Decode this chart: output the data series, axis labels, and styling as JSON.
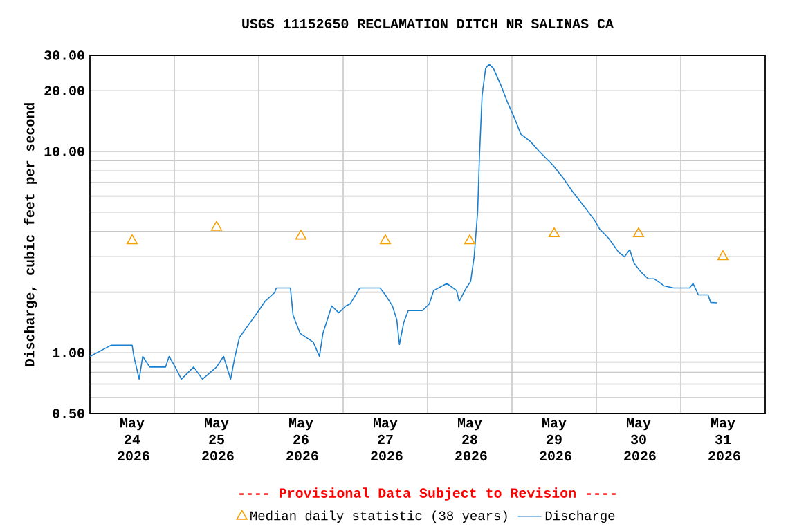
{
  "chart_data": {
    "type": "line",
    "title": "USGS 11152650 RECLAMATION DITCH NR SALINAS CA",
    "ylabel": "Discharge, cubic feet per second",
    "log": "y",
    "grid": true,
    "legend": "bottom",
    "annotations": [
      "---- Provisional Data Subject to Revision ----"
    ],
    "xlim": [
      "2026-05-24T00:00",
      "2026-06-01T00:00"
    ],
    "xticks": [
      {
        "value": "2026-05-25T00:00",
        "label": null
      },
      {
        "value": "2026-05-26T00:00",
        "label": null
      },
      {
        "value": "2026-05-27T00:00",
        "label": null
      },
      {
        "value": "2026-05-28T00:00",
        "label": null
      },
      {
        "value": "2026-05-29T00:00",
        "label": null
      },
      {
        "value": "2026-05-30T00:00",
        "label": null
      },
      {
        "value": "2026-05-31T00:00",
        "label": null
      },
      {
        "value": "2026-05-24T12:00",
        "label": "May 24 2026"
      },
      {
        "value": "2026-05-25T12:00",
        "label": "May 25 2026"
      },
      {
        "value": "2026-05-26T12:00",
        "label": "May 26 2026"
      },
      {
        "value": "2026-05-27T12:00",
        "label": "May 27 2026"
      },
      {
        "value": "2026-05-28T12:00",
        "label": "May 28 2026"
      },
      {
        "value": "2026-05-29T12:00",
        "label": "May 29 2026"
      },
      {
        "value": "2026-05-30T12:00",
        "label": "May 30 2026"
      },
      {
        "value": "2026-05-31T12:00",
        "label": "May 31 2026"
      }
    ],
    "ylim": [
      0.5,
      30
    ],
    "yticks": [
      {
        "value": 0.5,
        "label": "0.50"
      },
      {
        "value": 0.6,
        "label": null
      },
      {
        "value": 0.7,
        "label": null
      },
      {
        "value": 0.8,
        "label": null
      },
      {
        "value": 0.9,
        "label": null
      },
      {
        "value": 1,
        "label": "1.00"
      },
      {
        "value": 2,
        "label": null
      },
      {
        "value": 3,
        "label": null
      },
      {
        "value": 4,
        "label": null
      },
      {
        "value": 5,
        "label": null
      },
      {
        "value": 6,
        "label": null
      },
      {
        "value": 7,
        "label": null
      },
      {
        "value": 8,
        "label": null
      },
      {
        "value": 9,
        "label": null
      },
      {
        "value": 10,
        "label": "10.00"
      },
      {
        "value": 20,
        "label": "20.00"
      },
      {
        "value": 30,
        "label": "30.00"
      }
    ],
    "series": [
      {
        "name": "Median daily statistic (38 years)",
        "type": "scatter",
        "marker": "triangle",
        "color": "#f5a000",
        "x": [
          "2026-05-24T12:00",
          "2026-05-25T12:00",
          "2026-05-26T12:00",
          "2026-05-27T12:00",
          "2026-05-28T12:00",
          "2026-05-29T12:00",
          "2026-05-30T12:00",
          "2026-05-31T12:00"
        ],
        "values": [
          3.6,
          4.2,
          3.8,
          3.6,
          3.6,
          3.9,
          3.9,
          3.0
        ]
      },
      {
        "name": "Discharge",
        "color": "#1a7fcf",
        "x": [
          "2026-05-24T00:00",
          "2026-05-24T06:00",
          "2026-05-24T10:00",
          "2026-05-24T12:00",
          "2026-05-24T12:30",
          "2026-05-24T14:00",
          "2026-05-24T15:00",
          "2026-05-24T17:00",
          "2026-05-24T21:30",
          "2026-05-24T22:30",
          "2026-05-25T00:15",
          "2026-05-25T02:00",
          "2026-05-25T05:30",
          "2026-05-25T08:00",
          "2026-05-25T12:00",
          "2026-05-25T14:00",
          "2026-05-25T16:00",
          "2026-05-25T17:15",
          "2026-05-25T18:30",
          "2026-05-25T21:15",
          "2026-05-26T00:00",
          "2026-05-26T01:45",
          "2026-05-26T04:30",
          "2026-05-26T05:00",
          "2026-05-26T09:00",
          "2026-05-26T09:45",
          "2026-05-26T11:45",
          "2026-05-26T15:30",
          "2026-05-26T17:15",
          "2026-05-26T18:15",
          "2026-05-26T20:45",
          "2026-05-26T22:45",
          "2026-05-27T00:45",
          "2026-05-27T02:00",
          "2026-05-27T04:45",
          "2026-05-27T10:30",
          "2026-05-27T12:00",
          "2026-05-27T14:00",
          "2026-05-27T15:15",
          "2026-05-27T16:00",
          "2026-05-27T17:15",
          "2026-05-27T18:30",
          "2026-05-27T22:30",
          "2026-05-28T00:30",
          "2026-05-28T01:45",
          "2026-05-28T05:30",
          "2026-05-28T08:15",
          "2026-05-28T09:00",
          "2026-05-28T11:00",
          "2026-05-28T12:15",
          "2026-05-28T13:15",
          "2026-05-28T14:15",
          "2026-05-28T14:45",
          "2026-05-28T15:30",
          "2026-05-28T16:30",
          "2026-05-28T17:30",
          "2026-05-28T18:45",
          "2026-05-28T20:45",
          "2026-05-28T22:45",
          "2026-05-29T00:45",
          "2026-05-29T02:30",
          "2026-05-29T05:15",
          "2026-05-29T08:00",
          "2026-05-29T11:45",
          "2026-05-29T14:30",
          "2026-05-29T17:00",
          "2026-05-29T21:00",
          "2026-05-29T23:30",
          "2026-05-30T01:00",
          "2026-05-30T03:30",
          "2026-05-30T06:15",
          "2026-05-30T08:00",
          "2026-05-30T09:30",
          "2026-05-30T10:45",
          "2026-05-30T12:45",
          "2026-05-30T14:45",
          "2026-05-30T16:30",
          "2026-05-30T19:15",
          "2026-05-30T22:00",
          "2026-05-31T02:30",
          "2026-05-31T03:30",
          "2026-05-31T05:00",
          "2026-05-31T07:45",
          "2026-05-31T08:30",
          "2026-05-31T10:15"
        ],
        "values": [
          0.96,
          1.09,
          1.09,
          1.09,
          0.96,
          0.74,
          0.96,
          0.85,
          0.85,
          0.96,
          0.85,
          0.74,
          0.85,
          0.74,
          0.85,
          0.96,
          0.74,
          0.96,
          1.19,
          1.39,
          1.62,
          1.8,
          1.99,
          2.1,
          2.1,
          1.54,
          1.25,
          1.13,
          0.96,
          1.25,
          1.71,
          1.58,
          1.71,
          1.75,
          2.1,
          2.1,
          1.94,
          1.71,
          1.46,
          1.1,
          1.42,
          1.62,
          1.62,
          1.75,
          2.04,
          2.21,
          2.04,
          1.8,
          2.1,
          2.26,
          3.0,
          5.05,
          9.4,
          18.9,
          25.8,
          27.1,
          25.8,
          21.5,
          17.5,
          14.6,
          12.2,
          11.2,
          9.9,
          8.5,
          7.4,
          6.4,
          5.2,
          4.55,
          4.1,
          3.7,
          3.17,
          3.0,
          3.25,
          2.78,
          2.51,
          2.33,
          2.33,
          2.15,
          2.1,
          2.1,
          2.21,
          1.94,
          1.94,
          1.78,
          1.77
        ]
      }
    ]
  }
}
